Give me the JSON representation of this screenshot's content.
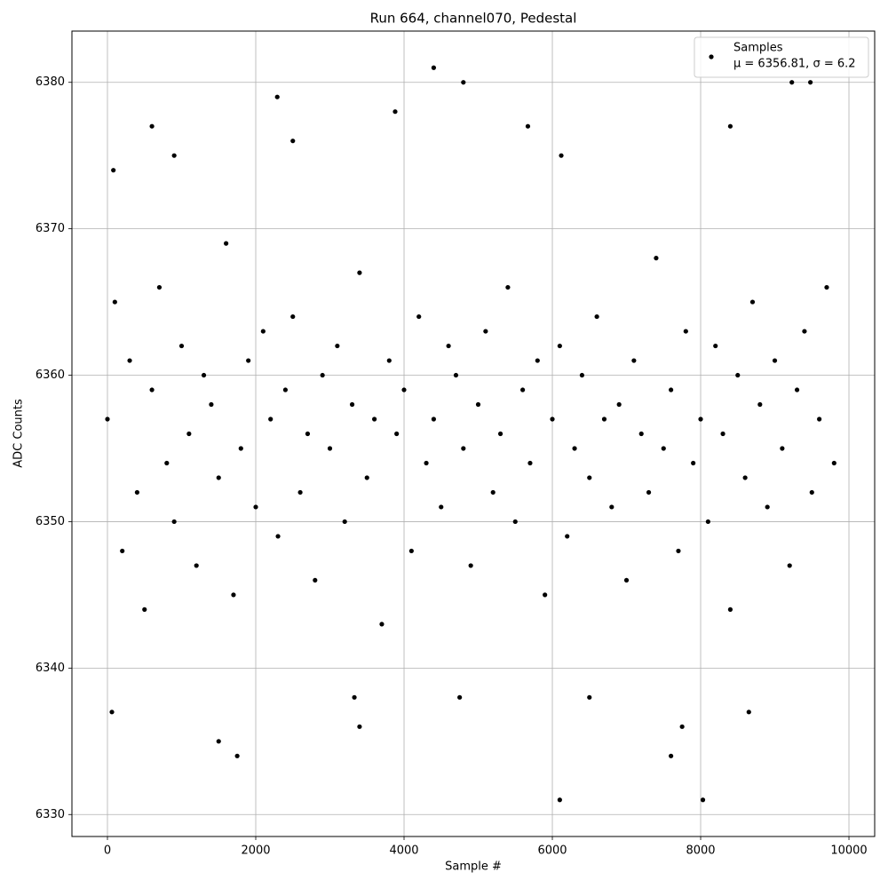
{
  "chart_data": {
    "type": "scatter",
    "title": "Run 664, channel070, Pedestal",
    "x_label": "Sample #",
    "y_label": "ADC Counts",
    "xlim": [
      -479,
      10347
    ],
    "ylim": [
      6328.5,
      6383.5
    ],
    "xticks": [
      0,
      2000,
      4000,
      6000,
      8000,
      10000
    ],
    "yticks": [
      6330,
      6340,
      6350,
      6360,
      6370,
      6380
    ],
    "grid": true,
    "legend_position": "upper right",
    "legend_subtitle": "μ = 6356.81, σ = 6.2",
    "series": [
      {
        "name": "Samples",
        "color": "#000000",
        "x": [
          0,
          100,
          200,
          300,
          400,
          500,
          600,
          700,
          800,
          900,
          1000,
          1100,
          1200,
          1300,
          1400,
          1500,
          1600,
          1700,
          1800,
          1900,
          2000,
          2100,
          2200,
          2300,
          2400,
          2500,
          2600,
          2700,
          2800,
          2900,
          3000,
          3100,
          3200,
          3300,
          3400,
          3500,
          3600,
          3700,
          3800,
          3900,
          4000,
          4100,
          4200,
          4300,
          4400,
          4500,
          4600,
          4700,
          4800,
          4900,
          5000,
          5100,
          5200,
          5300,
          5400,
          5500,
          5600,
          5700,
          5800,
          5900,
          6000,
          6100,
          6200,
          6300,
          6400,
          6500,
          6600,
          6700,
          6800,
          6900,
          7000,
          7100,
          7200,
          7300,
          7400,
          7500,
          7600,
          7700,
          7800,
          7900,
          8000,
          8100,
          8200,
          8300,
          8400,
          8500,
          8600,
          8700,
          8800,
          8900,
          9000,
          9100,
          9200,
          9300,
          9400,
          9500,
          9600,
          9700,
          9800,
          60,
          80,
          600,
          900,
          1500,
          1750,
          2290,
          2500,
          3400,
          3880,
          4400,
          4800,
          5670,
          6100,
          6120,
          6500,
          7600,
          7750,
          8030,
          8400,
          8650,
          9230,
          9480,
          4750,
          3330
        ],
        "values": [
          6357,
          6365,
          6348,
          6361,
          6352,
          6344,
          6359,
          6366,
          6354,
          6350,
          6362,
          6356,
          6347,
          6360,
          6358,
          6353,
          6369,
          6345,
          6355,
          6361,
          6351,
          6363,
          6357,
          6349,
          6359,
          6364,
          6352,
          6356,
          6346,
          6360,
          6355,
          6362,
          6350,
          6358,
          6367,
          6353,
          6357,
          6343,
          6361,
          6356,
          6359,
          6348,
          6364,
          6354,
          6357,
          6351,
          6362,
          6360,
          6355,
          6347,
          6358,
          6363,
          6352,
          6356,
          6366,
          6350,
          6359,
          6354,
          6361,
          6345,
          6357,
          6362,
          6349,
          6355,
          6360,
          6353,
          6364,
          6357,
          6351,
          6358,
          6346,
          6361,
          6356,
          6352,
          6368,
          6355,
          6359,
          6348,
          6363,
          6354,
          6357,
          6350,
          6362,
          6356,
          6344,
          6360,
          6353,
          6365,
          6358,
          6351,
          6361,
          6355,
          6347,
          6359,
          6363,
          6352,
          6357,
          6366,
          6354,
          6337,
          6374,
          6377,
          6375,
          6335,
          6334,
          6379,
          6376,
          6336,
          6378,
          6381,
          6380,
          6377,
          6331,
          6375,
          6338,
          6334,
          6336,
          6331,
          6377,
          6337,
          6380,
          6380,
          6338,
          6338
        ]
      }
    ]
  }
}
